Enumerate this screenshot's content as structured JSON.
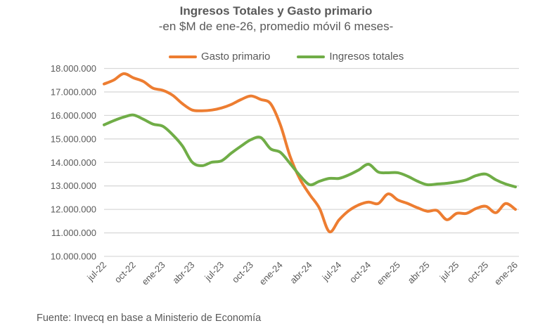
{
  "chart_data": {
    "type": "line",
    "title": "Ingresos Totales y Gasto primario",
    "subtitle": "-en $M de ene-26, promedio móvil 6 meses-",
    "xlabel": "",
    "ylabel": "",
    "ylim": [
      10000000,
      18000000
    ],
    "yticks": [
      "10.000.000",
      "11.000.000",
      "12.000.000",
      "13.000.000",
      "14.000.000",
      "15.000.000",
      "16.000.000",
      "17.000.000",
      "18.000.000"
    ],
    "xtick_labels": [
      "jul-22",
      "oct-22",
      "ene-23",
      "abr-23",
      "jul-23",
      "oct-23",
      "ene-24",
      "abr-24",
      "jul-24",
      "oct-24",
      "ene-25",
      "abr-25",
      "jul-25",
      "oct-25",
      "ene-26"
    ],
    "x_range": [
      "jul-22",
      "ene-26"
    ],
    "frequency": "monthly",
    "grid": "horizontal",
    "legend": "top",
    "series": [
      {
        "name": "Gasto primario",
        "color": "#ED7D31",
        "values": [
          17340000,
          17510000,
          17780000,
          17600000,
          17450000,
          17160000,
          17070000,
          16860000,
          16500000,
          16230000,
          16200000,
          16230000,
          16320000,
          16470000,
          16680000,
          16830000,
          16680000,
          16500000,
          15600000,
          14250000,
          13290000,
          12630000,
          12040000,
          11050000,
          11560000,
          11950000,
          12190000,
          12310000,
          12250000,
          12660000,
          12400000,
          12250000,
          12070000,
          11920000,
          11950000,
          11560000,
          11830000,
          11830000,
          12040000,
          12130000,
          11860000,
          12250000,
          12000000
        ]
      },
      {
        "name": "Ingresos totales",
        "color": "#70AD47",
        "values": [
          15600000,
          15780000,
          15930000,
          16020000,
          15840000,
          15630000,
          15540000,
          15180000,
          14700000,
          14010000,
          13860000,
          14010000,
          14070000,
          14400000,
          14700000,
          14970000,
          15060000,
          14580000,
          14430000,
          13950000,
          13440000,
          13050000,
          13200000,
          13320000,
          13320000,
          13470000,
          13680000,
          13920000,
          13590000,
          13560000,
          13560000,
          13410000,
          13200000,
          13050000,
          13080000,
          13110000,
          13170000,
          13260000,
          13440000,
          13500000,
          13260000,
          13080000,
          12960000
        ]
      }
    ]
  },
  "source": "Fuente: Invecq en base a Ministerio de Economía"
}
